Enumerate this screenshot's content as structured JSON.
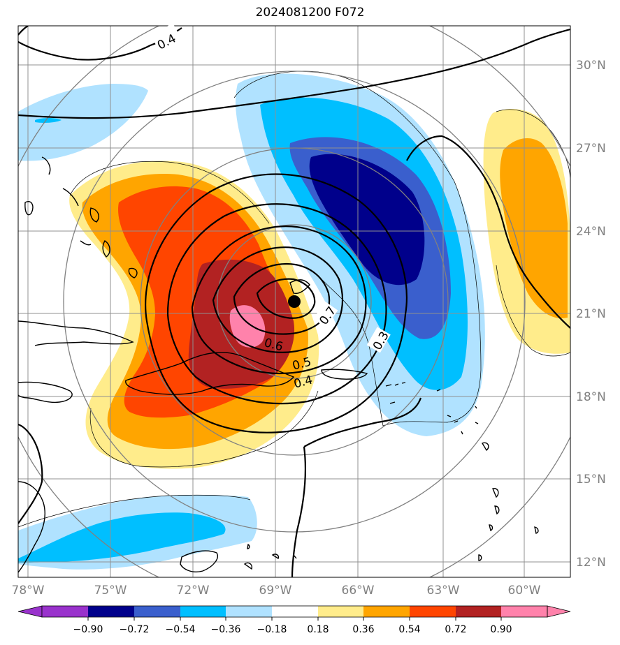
{
  "title": "2024081200 F072",
  "longitude_labels": [
    "78°W",
    "75°W",
    "72°W",
    "69°W",
    "66°W",
    "63°W",
    "60°W"
  ],
  "latitude_labels": [
    "30°N",
    "27°N",
    "24°N",
    "21°N",
    "18°N",
    "15°N",
    "12°N"
  ],
  "contour_labels": [
    "0.4",
    "0.7",
    "0.3",
    "0.6",
    "0.5",
    "0.4"
  ],
  "storm_center": {
    "lon": -68.4,
    "lat": 21.5
  },
  "colorbar": {
    "tick_labels": [
      "−0.90",
      "−0.72",
      "−0.54",
      "−0.36",
      "−0.18",
      "0.18",
      "0.36",
      "0.54",
      "0.72",
      "0.90"
    ],
    "colors": [
      "#9932cc",
      "#00008b",
      "#3a5fcd",
      "#00bfff",
      "#b0e2ff",
      "#ffffff",
      "#ffec8b",
      "#ffa500",
      "#ff4500",
      "#b22222",
      "#ff82ab"
    ]
  },
  "colors": {
    "axis_label": "#808080",
    "grid": "#808080",
    "coast": "#000000"
  }
}
